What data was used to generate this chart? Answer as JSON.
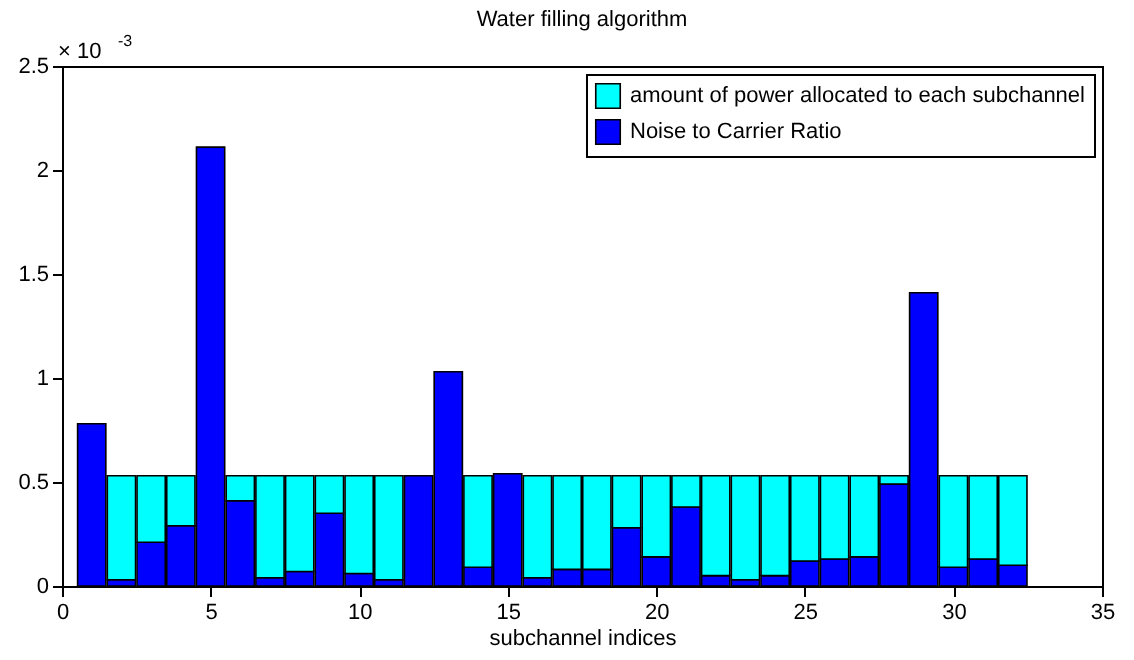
{
  "chart_data": {
    "type": "bar",
    "title": "Water filling algorithm",
    "xlabel": "subchannel indices",
    "annotations": [
      "× 10$^{-3}$"
    ],
    "x": [
      1,
      2,
      3,
      4,
      5,
      6,
      7,
      8,
      9,
      10,
      11,
      12,
      13,
      14,
      15,
      16,
      17,
      18,
      19,
      20,
      21,
      22,
      23,
      24,
      25,
      26,
      27,
      28,
      29,
      30,
      31,
      32
    ],
    "stacked": true,
    "series": [
      {
        "name": "Noise to Carrier Ratio",
        "color": "#0000ff",
        "values": [
          0.78,
          0.03,
          0.21,
          0.29,
          2.11,
          0.41,
          0.04,
          0.07,
          0.35,
          0.06,
          0.03,
          0.53,
          1.03,
          0.09,
          0.54,
          0.04,
          0.08,
          0.08,
          0.28,
          0.14,
          0.38,
          0.05,
          0.03,
          0.05,
          0.12,
          0.13,
          0.14,
          0.49,
          1.41,
          0.09,
          0.13,
          0.1
        ]
      },
      {
        "name": "amount of power allocated to each subchannel",
        "color": "#00ffff",
        "values": [
          0,
          0.5,
          0.32,
          0.24,
          0,
          0.12,
          0.49,
          0.46,
          0.18,
          0.47,
          0.5,
          0,
          0,
          0.44,
          0,
          0.49,
          0.45,
          0.45,
          0.25,
          0.39,
          0.15,
          0.48,
          0.5,
          0.48,
          0.41,
          0.4,
          0.39,
          0.04,
          0,
          0.44,
          0.4,
          0.43
        ]
      }
    ],
    "xlim": [
      0,
      35
    ],
    "xticks": [
      0,
      5,
      10,
      15,
      20,
      25,
      30,
      35
    ],
    "ylim": [
      0,
      2.5
    ],
    "yticks": [
      0,
      0.5,
      1,
      1.5,
      2,
      2.5
    ],
    "grid": false,
    "legend": "top right"
  }
}
